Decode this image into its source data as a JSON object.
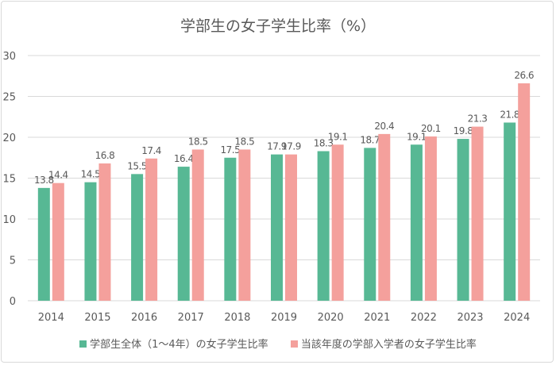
{
  "chart_data": {
    "type": "bar",
    "title": "学部生の女子学生比率（%）",
    "categories": [
      "2014",
      "2015",
      "2016",
      "2017",
      "2018",
      "2019",
      "2020",
      "2021",
      "2022",
      "2023",
      "2024"
    ],
    "series": [
      {
        "name": "学部生全体（1～4年）の女子学生比率",
        "color": "#57b894",
        "values": [
          13.8,
          14.5,
          15.5,
          16.4,
          17.5,
          17.9,
          18.3,
          18.7,
          19.1,
          19.8,
          21.8
        ]
      },
      {
        "name": "当該年度の学部入学者の女子学生比率",
        "color": "#f4a09c",
        "values": [
          14.4,
          16.8,
          17.4,
          18.5,
          18.5,
          17.9,
          19.1,
          20.4,
          20.1,
          21.3,
          26.6
        ]
      }
    ],
    "ylim": [
      0,
      30
    ],
    "yticks": [
      0,
      5,
      10,
      15,
      20,
      25,
      30
    ],
    "grid": true,
    "legend": "bottom",
    "data_labels": true
  }
}
